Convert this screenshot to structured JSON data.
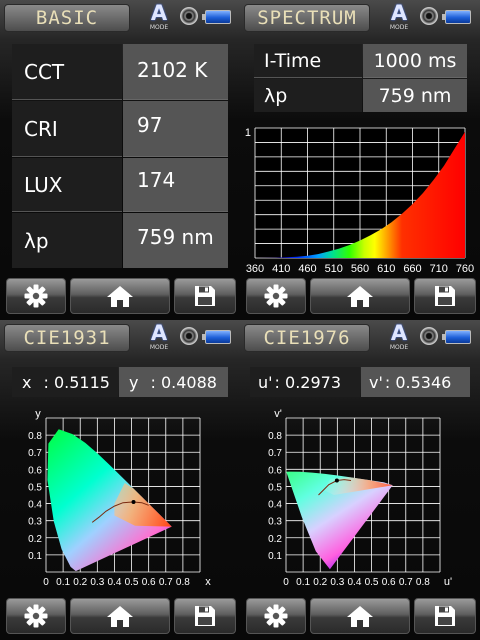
{
  "basic": {
    "title": "BASIC",
    "mode_letter": "A",
    "mode_label": "MODE",
    "rows": [
      {
        "label": "CCT",
        "value": "2102 K"
      },
      {
        "label": "CRI",
        "value": "97"
      },
      {
        "label": "LUX",
        "value": "174"
      },
      {
        "label": "λp",
        "value": "759 nm"
      }
    ]
  },
  "spectrum": {
    "title": "SPECTRUM",
    "mode_letter": "A",
    "mode_label": "MODE",
    "rows": [
      {
        "label": "I-Time",
        "value": "1000 ms"
      },
      {
        "label": "λp",
        "value": "759 nm"
      }
    ],
    "chart_data": {
      "type": "area",
      "title": "",
      "xlabel": "",
      "ylabel": "",
      "x_ticks": [
        "360",
        "410",
        "460",
        "510",
        "560",
        "610",
        "660",
        "710",
        "760"
      ],
      "y_ticks": [
        "1"
      ],
      "xlim": [
        360,
        760
      ],
      "ylim": [
        0,
        1
      ],
      "grid": true,
      "x": [
        360,
        400,
        420,
        440,
        460,
        480,
        500,
        520,
        540,
        560,
        580,
        600,
        620,
        640,
        660,
        680,
        700,
        720,
        740,
        760
      ],
      "y": [
        0,
        0.002,
        0.005,
        0.01,
        0.017,
        0.03,
        0.05,
        0.072,
        0.1,
        0.135,
        0.175,
        0.22,
        0.275,
        0.34,
        0.415,
        0.5,
        0.6,
        0.71,
        0.84,
        0.97
      ]
    }
  },
  "cie1931": {
    "title": "CIE1931",
    "mode_letter": "A",
    "mode_label": "MODE",
    "coord1_label": "x",
    "coord1_value": ": 0.5115",
    "coord2_label": "y",
    "coord2_value": ": 0.4088",
    "chart_data": {
      "type": "scatter",
      "title": "",
      "xlabel": "x",
      "ylabel": "y",
      "x_ticks": [
        "0",
        "0.1",
        "0.2",
        "0.3",
        "0.4",
        "0.5",
        "0.6",
        "0.7",
        "0.8"
      ],
      "y_ticks": [
        "0.1",
        "0.2",
        "0.3",
        "0.4",
        "0.5",
        "0.6",
        "0.7",
        "0.8"
      ],
      "xlim": [
        0,
        0.9
      ],
      "ylim": [
        0,
        0.9
      ],
      "grid": true,
      "point": {
        "x": 0.5115,
        "y": 0.4088
      }
    }
  },
  "cie1976": {
    "title": "CIE1976",
    "mode_letter": "A",
    "mode_label": "MODE",
    "coord1_label": "u'",
    "coord1_value": ": 0.2973",
    "coord2_label": "v'",
    "coord2_value": ": 0.5346",
    "chart_data": {
      "type": "scatter",
      "title": "",
      "xlabel": "u'",
      "ylabel": "v'",
      "x_ticks": [
        "0",
        "0.1",
        "0.2",
        "0.3",
        "0.4",
        "0.5",
        "0.6",
        "0.7",
        "0.8"
      ],
      "y_ticks": [
        "0.1",
        "0.2",
        "0.3",
        "0.4",
        "0.5",
        "0.6",
        "0.7",
        "0.8"
      ],
      "xlim": [
        0,
        0.9
      ],
      "ylim": [
        0,
        0.9
      ],
      "grid": true,
      "point": {
        "x": 0.2973,
        "y": 0.5346
      }
    }
  },
  "toolbar_icons": [
    "gear-icon",
    "home-icon",
    "save-icon"
  ]
}
